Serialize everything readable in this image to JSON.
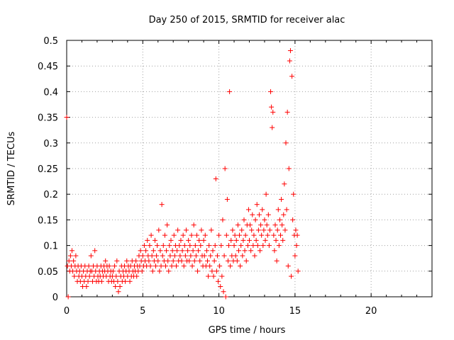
{
  "chart_data": {
    "type": "scatter",
    "title": "Day 250 of 2015, SRMTID for receiver alac",
    "xlabel": "GPS time / hours",
    "ylabel": "SRMTID / TECUs",
    "xlim": [
      0,
      24
    ],
    "ylim": [
      0,
      0.5
    ],
    "xticks": [
      0,
      5,
      10,
      15,
      20
    ],
    "yticks": [
      0,
      0.05,
      0.1,
      0.15,
      0.2,
      0.25,
      0.3,
      0.35,
      0.4,
      0.45,
      0.5
    ],
    "xtick_labels": [
      "0",
      "5",
      "10",
      "15",
      "20"
    ],
    "ytick_labels": [
      "0",
      "0.05",
      "0.1",
      "0.15",
      "0.2",
      "0.25",
      "0.3",
      "0.35",
      "0.4",
      "0.45",
      "0.5"
    ],
    "grid": true,
    "marker": "+",
    "color": "#ff0000",
    "series": [
      {
        "name": "SRMTID",
        "points": [
          [
            0.0,
            0.35
          ],
          [
            0.05,
            0.06
          ],
          [
            0.1,
            0.0
          ],
          [
            0.15,
            0.07
          ],
          [
            0.2,
            0.05
          ],
          [
            0.25,
            0.08
          ],
          [
            0.3,
            0.06
          ],
          [
            0.35,
            0.09
          ],
          [
            0.4,
            0.05
          ],
          [
            0.45,
            0.07
          ],
          [
            0.5,
            0.04
          ],
          [
            0.55,
            0.06
          ],
          [
            0.6,
            0.08
          ],
          [
            0.65,
            0.05
          ],
          [
            0.7,
            0.03
          ],
          [
            0.75,
            0.06
          ],
          [
            0.8,
            0.04
          ],
          [
            0.85,
            0.05
          ],
          [
            0.9,
            0.03
          ],
          [
            0.95,
            0.06
          ],
          [
            1.0,
            0.04
          ],
          [
            1.05,
            0.02
          ],
          [
            1.1,
            0.05
          ],
          [
            1.15,
            0.03
          ],
          [
            1.2,
            0.06
          ],
          [
            1.25,
            0.04
          ],
          [
            1.3,
            0.02
          ],
          [
            1.35,
            0.05
          ],
          [
            1.4,
            0.03
          ],
          [
            1.45,
            0.06
          ],
          [
            1.5,
            0.04
          ],
          [
            1.55,
            0.05
          ],
          [
            1.6,
            0.08
          ],
          [
            1.65,
            0.05
          ],
          [
            1.7,
            0.03
          ],
          [
            1.75,
            0.06
          ],
          [
            1.8,
            0.04
          ],
          [
            1.85,
            0.09
          ],
          [
            1.9,
            0.05
          ],
          [
            1.95,
            0.03
          ],
          [
            2.0,
            0.06
          ],
          [
            2.05,
            0.04
          ],
          [
            2.1,
            0.03
          ],
          [
            2.15,
            0.05
          ],
          [
            2.2,
            0.04
          ],
          [
            2.25,
            0.06
          ],
          [
            2.3,
            0.03
          ],
          [
            2.35,
            0.05
          ],
          [
            2.4,
            0.04
          ],
          [
            2.45,
            0.06
          ],
          [
            2.5,
            0.05
          ],
          [
            2.55,
            0.07
          ],
          [
            2.6,
            0.04
          ],
          [
            2.65,
            0.06
          ],
          [
            2.7,
            0.05
          ],
          [
            2.75,
            0.03
          ],
          [
            2.8,
            0.06
          ],
          [
            2.85,
            0.04
          ],
          [
            2.9,
            0.05
          ],
          [
            2.95,
            0.03
          ],
          [
            3.0,
            0.04
          ],
          [
            3.05,
            0.05
          ],
          [
            3.1,
            0.03
          ],
          [
            3.15,
            0.06
          ],
          [
            3.2,
            0.02
          ],
          [
            3.25,
            0.04
          ],
          [
            3.3,
            0.07
          ],
          [
            3.35,
            0.03
          ],
          [
            3.4,
            0.01
          ],
          [
            3.45,
            0.05
          ],
          [
            3.5,
            0.02
          ],
          [
            3.55,
            0.04
          ],
          [
            3.6,
            0.06
          ],
          [
            3.65,
            0.03
          ],
          [
            3.7,
            0.05
          ],
          [
            3.75,
            0.04
          ],
          [
            3.8,
            0.06
          ],
          [
            3.85,
            0.03
          ],
          [
            3.9,
            0.05
          ],
          [
            3.95,
            0.07
          ],
          [
            4.0,
            0.04
          ],
          [
            4.05,
            0.06
          ],
          [
            4.1,
            0.05
          ],
          [
            4.15,
            0.03
          ],
          [
            4.2,
            0.06
          ],
          [
            4.25,
            0.04
          ],
          [
            4.3,
            0.07
          ],
          [
            4.35,
            0.05
          ],
          [
            4.4,
            0.04
          ],
          [
            4.45,
            0.06
          ],
          [
            4.5,
            0.05
          ],
          [
            4.55,
            0.07
          ],
          [
            4.6,
            0.04
          ],
          [
            4.65,
            0.06
          ],
          [
            4.7,
            0.05
          ],
          [
            4.75,
            0.08
          ],
          [
            4.8,
            0.06
          ],
          [
            4.85,
            0.09
          ],
          [
            4.9,
            0.07
          ],
          [
            4.95,
            0.05
          ],
          [
            5.0,
            0.08
          ],
          [
            5.05,
            0.06
          ],
          [
            5.1,
            0.1
          ],
          [
            5.15,
            0.07
          ],
          [
            5.2,
            0.09
          ],
          [
            5.25,
            0.06
          ],
          [
            5.3,
            0.11
          ],
          [
            5.35,
            0.08
          ],
          [
            5.4,
            0.07
          ],
          [
            5.45,
            0.1
          ],
          [
            5.5,
            0.06
          ],
          [
            5.55,
            0.12
          ],
          [
            5.6,
            0.08
          ],
          [
            5.65,
            0.05
          ],
          [
            5.7,
            0.09
          ],
          [
            5.75,
            0.07
          ],
          [
            5.8,
            0.11
          ],
          [
            5.85,
            0.06
          ],
          [
            5.9,
            0.08
          ],
          [
            5.95,
            0.1
          ],
          [
            6.0,
            0.07
          ],
          [
            6.05,
            0.13
          ],
          [
            6.1,
            0.05
          ],
          [
            6.15,
            0.09
          ],
          [
            6.2,
            0.06
          ],
          [
            6.25,
            0.18
          ],
          [
            6.3,
            0.08
          ],
          [
            6.35,
            0.1
          ],
          [
            6.4,
            0.07
          ],
          [
            6.45,
            0.12
          ],
          [
            6.5,
            0.06
          ],
          [
            6.55,
            0.09
          ],
          [
            6.6,
            0.14
          ],
          [
            6.65,
            0.07
          ],
          [
            6.7,
            0.05
          ],
          [
            6.75,
            0.1
          ],
          [
            6.8,
            0.08
          ],
          [
            6.85,
            0.11
          ],
          [
            6.9,
            0.06
          ],
          [
            6.95,
            0.09
          ],
          [
            7.0,
            0.07
          ],
          [
            7.05,
            0.12
          ],
          [
            7.1,
            0.08
          ],
          [
            7.15,
            0.1
          ],
          [
            7.2,
            0.06
          ],
          [
            7.25,
            0.09
          ],
          [
            7.3,
            0.13
          ],
          [
            7.35,
            0.07
          ],
          [
            7.4,
            0.1
          ],
          [
            7.45,
            0.08
          ],
          [
            7.5,
            0.11
          ],
          [
            7.55,
            0.07
          ],
          [
            7.6,
            0.09
          ],
          [
            7.65,
            0.12
          ],
          [
            7.7,
            0.06
          ],
          [
            7.75,
            0.1
          ],
          [
            7.8,
            0.08
          ],
          [
            7.85,
            0.13
          ],
          [
            7.9,
            0.07
          ],
          [
            7.95,
            0.09
          ],
          [
            8.0,
            0.11
          ],
          [
            8.05,
            0.07
          ],
          [
            8.1,
            0.1
          ],
          [
            8.15,
            0.08
          ],
          [
            8.2,
            0.12
          ],
          [
            8.25,
            0.06
          ],
          [
            8.3,
            0.09
          ],
          [
            8.35,
            0.14
          ],
          [
            8.4,
            0.07
          ],
          [
            8.45,
            0.1
          ],
          [
            8.5,
            0.08
          ],
          [
            8.55,
            0.12
          ],
          [
            8.6,
            0.05
          ],
          [
            8.65,
            0.09
          ],
          [
            8.7,
            0.11
          ],
          [
            8.75,
            0.07
          ],
          [
            8.8,
            0.1
          ],
          [
            8.85,
            0.13
          ],
          [
            8.9,
            0.08
          ],
          [
            8.95,
            0.06
          ],
          [
            9.0,
            0.11
          ],
          [
            9.05,
            0.08
          ],
          [
            9.1,
            0.12
          ],
          [
            9.15,
            0.06
          ],
          [
            9.2,
            0.09
          ],
          [
            9.25,
            0.07
          ],
          [
            9.3,
            0.04
          ],
          [
            9.35,
            0.1
          ],
          [
            9.4,
            0.06
          ],
          [
            9.45,
            0.08
          ],
          [
            9.5,
            0.13
          ],
          [
            9.55,
            0.05
          ],
          [
            9.6,
            0.09
          ],
          [
            9.65,
            0.04
          ],
          [
            9.7,
            0.07
          ],
          [
            9.75,
            0.1
          ],
          [
            9.8,
            0.23
          ],
          [
            9.85,
            0.05
          ],
          [
            9.9,
            0.08
          ],
          [
            9.95,
            0.03
          ],
          [
            10.0,
            0.12
          ],
          [
            10.05,
            0.06
          ],
          [
            10.1,
            0.02
          ],
          [
            10.15,
            0.1
          ],
          [
            10.2,
            0.04
          ],
          [
            10.25,
            0.15
          ],
          [
            10.3,
            0.01
          ],
          [
            10.35,
            0.08
          ],
          [
            10.4,
            0.25
          ],
          [
            10.45,
            0.0
          ],
          [
            10.5,
            0.12
          ],
          [
            10.55,
            0.19
          ],
          [
            10.6,
            0.07
          ],
          [
            10.65,
            0.1
          ],
          [
            10.7,
            0.4
          ],
          [
            10.75,
            0.06
          ],
          [
            10.8,
            0.11
          ],
          [
            10.85,
            0.08
          ],
          [
            10.9,
            0.13
          ],
          [
            10.95,
            0.07
          ],
          [
            11.0,
            0.1
          ],
          [
            11.05,
            0.12
          ],
          [
            11.1,
            0.08
          ],
          [
            11.15,
            0.11
          ],
          [
            11.2,
            0.07
          ],
          [
            11.25,
            0.14
          ],
          [
            11.3,
            0.09
          ],
          [
            11.35,
            0.12
          ],
          [
            11.4,
            0.06
          ],
          [
            11.45,
            0.1
          ],
          [
            11.5,
            0.13
          ],
          [
            11.55,
            0.08
          ],
          [
            11.6,
            0.11
          ],
          [
            11.65,
            0.15
          ],
          [
            11.7,
            0.09
          ],
          [
            11.75,
            0.12
          ],
          [
            11.8,
            0.07
          ],
          [
            11.85,
            0.14
          ],
          [
            11.9,
            0.1
          ],
          [
            11.95,
            0.17
          ],
          [
            12.0,
            0.11
          ],
          [
            12.05,
            0.14
          ],
          [
            12.1,
            0.09
          ],
          [
            12.15,
            0.13
          ],
          [
            12.2,
            0.16
          ],
          [
            12.25,
            0.1
          ],
          [
            12.3,
            0.12
          ],
          [
            12.35,
            0.08
          ],
          [
            12.4,
            0.15
          ],
          [
            12.45,
            0.11
          ],
          [
            12.5,
            0.18
          ],
          [
            12.55,
            0.1
          ],
          [
            12.6,
            0.13
          ],
          [
            12.65,
            0.16
          ],
          [
            12.7,
            0.09
          ],
          [
            12.75,
            0.14
          ],
          [
            12.8,
            0.12
          ],
          [
            12.85,
            0.17
          ],
          [
            12.9,
            0.1
          ],
          [
            12.95,
            0.13
          ],
          [
            13.0,
            0.15
          ],
          [
            13.05,
            0.11
          ],
          [
            13.1,
            0.2
          ],
          [
            13.15,
            0.14
          ],
          [
            13.2,
            0.12
          ],
          [
            13.25,
            0.16
          ],
          [
            13.3,
            0.1
          ],
          [
            13.35,
            0.13
          ],
          [
            13.4,
            0.4
          ],
          [
            13.45,
            0.37
          ],
          [
            13.5,
            0.33
          ],
          [
            13.55,
            0.36
          ],
          [
            13.6,
            0.12
          ],
          [
            13.65,
            0.09
          ],
          [
            13.7,
            0.14
          ],
          [
            13.75,
            0.11
          ],
          [
            13.8,
            0.07
          ],
          [
            13.85,
            0.13
          ],
          [
            13.9,
            0.17
          ],
          [
            13.95,
            0.1
          ],
          [
            14.0,
            0.15
          ],
          [
            14.05,
            0.12
          ],
          [
            14.1,
            0.19
          ],
          [
            14.15,
            0.14
          ],
          [
            14.2,
            0.11
          ],
          [
            14.25,
            0.16
          ],
          [
            14.3,
            0.22
          ],
          [
            14.35,
            0.13
          ],
          [
            14.4,
            0.3
          ],
          [
            14.45,
            0.17
          ],
          [
            14.5,
            0.36
          ],
          [
            14.55,
            0.06
          ],
          [
            14.6,
            0.25
          ],
          [
            14.65,
            0.46
          ],
          [
            14.7,
            0.48
          ],
          [
            14.75,
            0.04
          ],
          [
            14.8,
            0.43
          ],
          [
            14.85,
            0.15
          ],
          [
            14.9,
            0.2
          ],
          [
            14.95,
            0.12
          ],
          [
            15.0,
            0.08
          ],
          [
            15.05,
            0.13
          ],
          [
            15.1,
            0.1
          ],
          [
            15.15,
            0.12
          ],
          [
            15.2,
            0.05
          ]
        ]
      }
    ]
  }
}
